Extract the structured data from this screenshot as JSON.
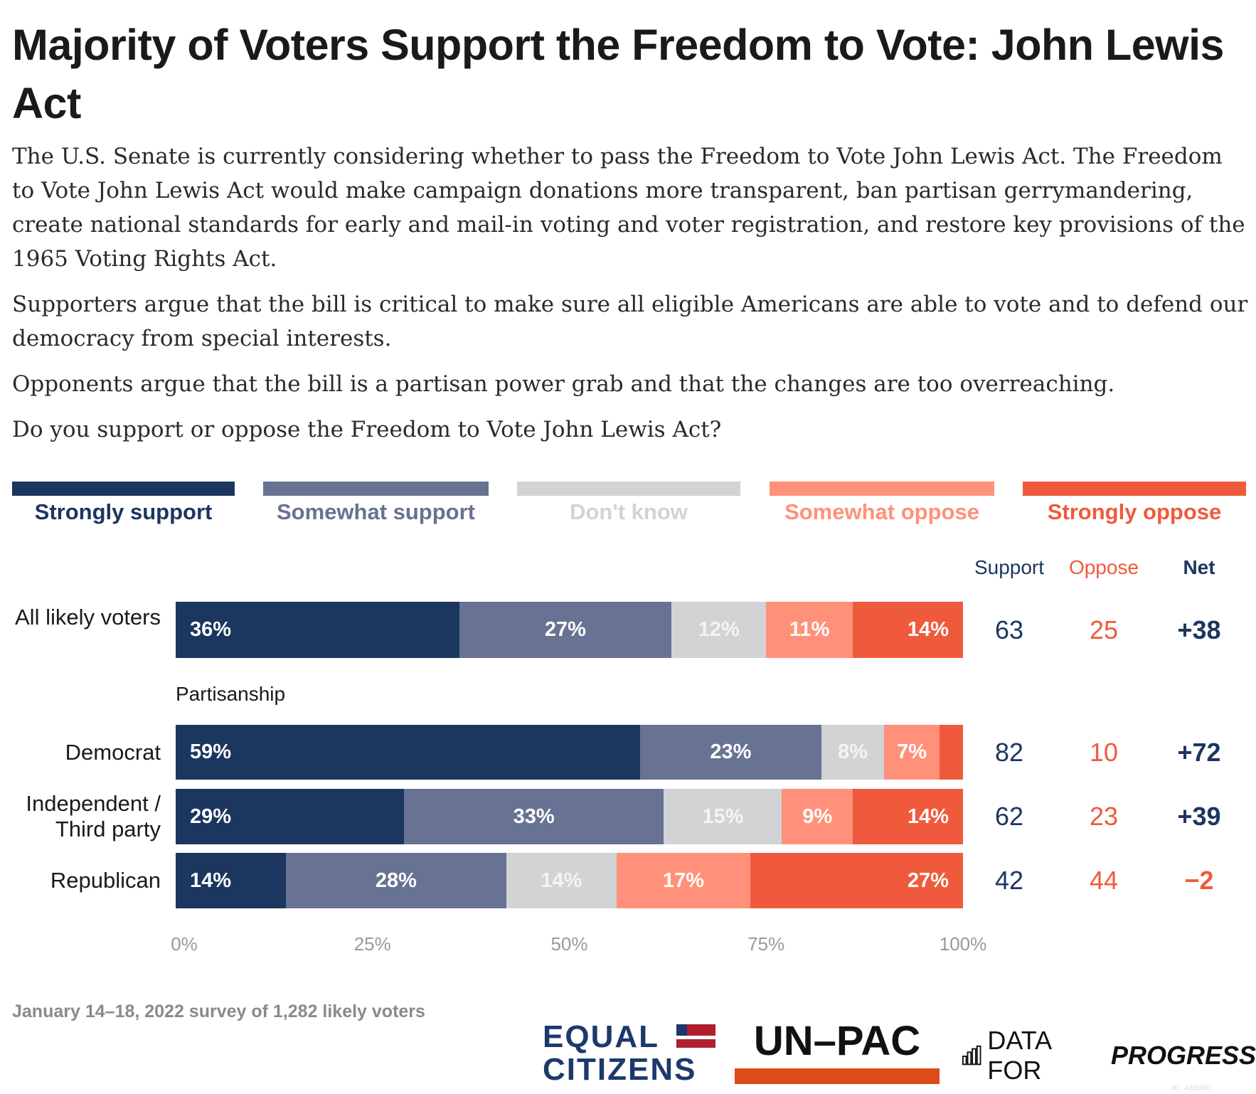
{
  "title": "Majority of Voters Support the Freedom to Vote: John Lewis Act",
  "paragraphs": [
    "The U.S. Senate is currently considering whether to pass the Freedom to Vote John Lewis Act. The Freedom to Vote John Lewis Act would make campaign donations more transparent, ban partisan gerrymandering, create national standards for early and mail-in voting and voter registration, and restore key provisions of the 1965 Voting Rights Act.",
    "Supporters argue that the bill is critical to make sure all eligible Americans are able to vote and to defend our democracy from special interests.",
    "Opponents argue that the bill is a partisan power grab and that the changes are too overreaching.",
    "Do you support or oppose the Freedom to Vote John Lewis Act?"
  ],
  "chart_data": {
    "type": "bar",
    "orientation": "horizontal-stacked",
    "legend_position": "top",
    "series": [
      {
        "name": "Strongly support",
        "color": "#1b365f",
        "label_color": "#1b365f"
      },
      {
        "name": "Somewhat support",
        "color": "#687292",
        "label_color": "#687292"
      },
      {
        "name": "Don't know",
        "color": "#d2d3d5",
        "label_color": "#d2d3d5"
      },
      {
        "name": "Somewhat oppose",
        "color": "#ff917a",
        "label_color": "#ff917a"
      },
      {
        "name": "Strongly oppose",
        "color": "#f05a3c",
        "label_color": "#f05a3c"
      }
    ],
    "columns": {
      "support": "Support",
      "oppose": "Oppose",
      "net": "Net"
    },
    "group_label": "Partisanship",
    "rows": [
      {
        "label": "All likely voters",
        "values": [
          36,
          27,
          12,
          11,
          14
        ],
        "labels": [
          "36%",
          "27%",
          "12%",
          "11%",
          "14%"
        ],
        "support": "63",
        "oppose": "25",
        "net": "+38",
        "net_positive": true
      },
      {
        "label": "Democrat",
        "values": [
          59,
          23,
          8,
          7,
          3
        ],
        "labels": [
          "59%",
          "23%",
          "8%",
          "7%",
          ""
        ],
        "support": "82",
        "oppose": "10",
        "net": "+72",
        "net_positive": true
      },
      {
        "label": "Independent / Third party",
        "values": [
          29,
          33,
          15,
          9,
          14
        ],
        "labels": [
          "29%",
          "33%",
          "15%",
          "9%",
          "14%"
        ],
        "support": "62",
        "oppose": "23",
        "net": "+39",
        "net_positive": true
      },
      {
        "label": "Republican",
        "values": [
          14,
          28,
          14,
          17,
          27
        ],
        "labels": [
          "14%",
          "28%",
          "14%",
          "17%",
          "27%"
        ],
        "support": "42",
        "oppose": "44",
        "net": "−2",
        "net_positive": false
      }
    ],
    "xlim": [
      0,
      100
    ],
    "xticks": [
      "0%",
      "25%",
      "50%",
      "75%",
      "100%"
    ],
    "grid": false
  },
  "footer": {
    "source": "January 14–18, 2022 survey of 1,282 likely voters",
    "logos": {
      "equal_line1": "EQUAL",
      "equal_line2": "CITIZENS",
      "unpac": "UN–PAC",
      "dfp_light": "DATA FOR",
      "dfp_bold": "PROGRESS"
    },
    "id": "ID: 43399G"
  }
}
